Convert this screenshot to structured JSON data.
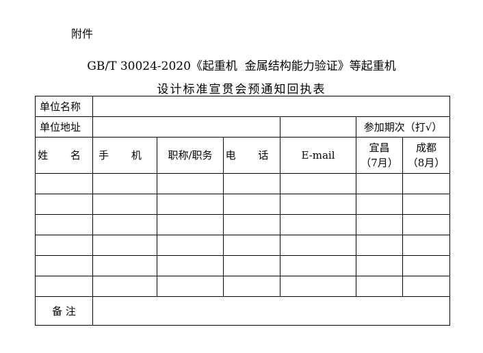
{
  "attachment_label": "附件",
  "title_line1": "GB/T 30024-2020《起重机  金属结构能力验证》等起重机",
  "title_line2": "设计标准宣贯会预通知回执表",
  "form": {
    "unit_name_label": "单位名称",
    "unit_address_label": "单位地址",
    "session_label": "参加期次（打√）",
    "headers": {
      "name": "姓 名",
      "mobile": "手 机",
      "title": "职称/职务",
      "phone": "电 话",
      "email": "E-mail",
      "yichang": "宜昌",
      "yichang_month": "（7月）",
      "chengdu": "成都",
      "chengdu_month": "（8月）"
    },
    "remarks_label": "备 注"
  }
}
